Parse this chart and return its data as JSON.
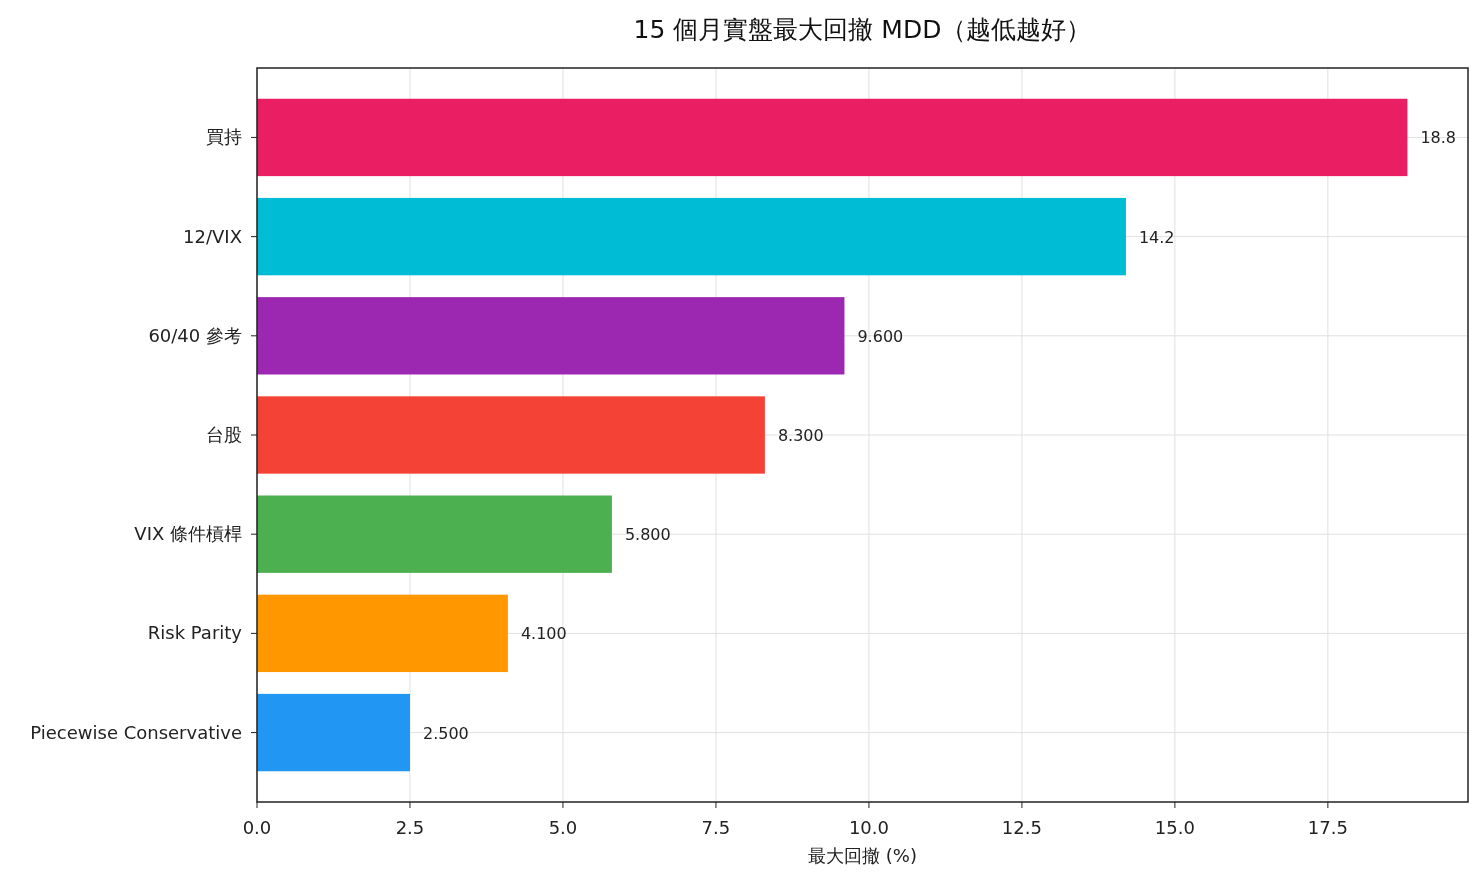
{
  "chart_data": {
    "type": "bar",
    "orientation": "horizontal",
    "title": "15 個月實盤最大回撤 MDD（越低越好）",
    "xlabel": "最大回撤 (%)",
    "categories": [
      "買持",
      "12/VIX",
      "60/40 參考",
      "台股",
      "VIX 條件槓桿",
      "Risk Parity",
      "Piecewise Conservative"
    ],
    "values": [
      18.8,
      14.2,
      9.6,
      8.3,
      5.8,
      4.1,
      2.5
    ],
    "value_labels": [
      "18.8",
      "14.2",
      "9.600",
      "8.300",
      "5.800",
      "4.100",
      "2.500"
    ],
    "colors": [
      "#e91e63",
      "#00bcd4",
      "#9c27b0",
      "#f44336",
      "#4caf50",
      "#ff9800",
      "#2196f3"
    ],
    "xlim": [
      0,
      19.79
    ],
    "xticks": [
      {
        "value": 0,
        "label": "0.0"
      },
      {
        "value": 2.5,
        "label": "2.5"
      },
      {
        "value": 5,
        "label": "5.0"
      },
      {
        "value": 7.5,
        "label": "7.5"
      },
      {
        "value": 10,
        "label": "10.0"
      },
      {
        "value": 12.5,
        "label": "12.5"
      },
      {
        "value": 15,
        "label": "15.0"
      },
      {
        "value": 17.5,
        "label": "17.5"
      }
    ],
    "grid": true
  }
}
